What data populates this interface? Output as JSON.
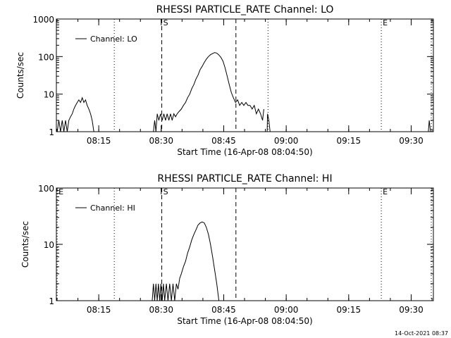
{
  "footer_timestamp": "14-Oct-2021 08:37",
  "chart_data": [
    {
      "type": "line",
      "title": "RHESSI PARTICLE_RATE Channel: LO",
      "xlabel": "Start Time (16-Apr-08 08:04:50)",
      "ylabel": "Counts/sec",
      "x_units": "minutes since 08:04:50",
      "xlim": [
        0,
        90.5
      ],
      "ylim": [
        1,
        1000
      ],
      "y_scale": "log",
      "x_ticks": [
        10.17,
        25.17,
        40.17,
        55.17,
        70.17,
        85.17
      ],
      "x_ticklabels": [
        "08:15",
        "08:30",
        "08:45",
        "09:00",
        "09:15",
        "09:30"
      ],
      "y_ticks": [
        1,
        10,
        100,
        1000
      ],
      "y_ticklabels": [
        "1",
        "10",
        "100",
        "1000"
      ],
      "legend": {
        "position": "top-left",
        "label": "Channel: LO"
      },
      "markers": [
        {
          "x": 13.9,
          "style": "dotted",
          "label": ""
        },
        {
          "x": 25.3,
          "style": "dashed",
          "label": "S"
        },
        {
          "x": 43.1,
          "style": "dashed",
          "label": ""
        },
        {
          "x": 50.8,
          "style": "dotted",
          "label": ""
        },
        {
          "x": 78.0,
          "style": "dotted",
          "label": "E"
        },
        {
          "x": 90.0,
          "style": "dotted",
          "label": ""
        }
      ],
      "series": [
        {
          "name": "Channel: LO",
          "segments": [
            [
              [
                0.2,
                1
              ],
              [
                0.6,
                2
              ],
              [
                1.0,
                1
              ],
              [
                1.4,
                2
              ],
              [
                1.8,
                1
              ],
              [
                2.2,
                2
              ],
              [
                2.6,
                1
              ],
              [
                3.0,
                2
              ],
              [
                3.4,
                2.5
              ],
              [
                3.8,
                3
              ],
              [
                4.2,
                4
              ],
              [
                4.6,
                5
              ],
              [
                5.0,
                6
              ],
              [
                5.4,
                7
              ],
              [
                5.8,
                6
              ],
              [
                6.2,
                8
              ],
              [
                6.6,
                6
              ],
              [
                7.0,
                7
              ],
              [
                7.4,
                5
              ],
              [
                7.8,
                4
              ],
              [
                8.2,
                3
              ],
              [
                8.6,
                2
              ],
              [
                9.0,
                1
              ]
            ],
            [
              [
                23.3,
                1
              ],
              [
                23.6,
                2
              ],
              [
                23.9,
                1
              ],
              [
                24.2,
                3
              ],
              [
                24.6,
                2
              ],
              [
                25.0,
                3
              ],
              [
                25.4,
                2
              ],
              [
                25.8,
                3
              ],
              [
                26.2,
                2
              ],
              [
                26.6,
                3
              ],
              [
                27.0,
                2
              ],
              [
                27.4,
                3
              ],
              [
                27.8,
                2
              ],
              [
                28.2,
                3
              ],
              [
                28.6,
                2.5
              ],
              [
                29.0,
                3
              ],
              [
                29.5,
                3.5
              ],
              [
                30.0,
                4
              ],
              [
                30.5,
                5
              ],
              [
                31.0,
                6
              ],
              [
                31.5,
                8
              ],
              [
                32.0,
                10
              ],
              [
                32.5,
                14
              ],
              [
                33.0,
                18
              ],
              [
                33.5,
                25
              ],
              [
                34.0,
                32
              ],
              [
                34.5,
                45
              ],
              [
                35.0,
                55
              ],
              [
                35.5,
                70
              ],
              [
                36.0,
                85
              ],
              [
                36.5,
                100
              ],
              [
                37.0,
                112
              ],
              [
                37.5,
                120
              ],
              [
                38.0,
                128
              ],
              [
                38.5,
                124
              ],
              [
                39.0,
                110
              ],
              [
                39.5,
                95
              ],
              [
                40.0,
                75
              ],
              [
                40.5,
                50
              ],
              [
                41.0,
                30
              ],
              [
                41.5,
                18
              ],
              [
                42.0,
                11
              ],
              [
                42.5,
                8
              ],
              [
                43.0,
                6
              ],
              [
                43.5,
                7
              ],
              [
                44.0,
                5
              ],
              [
                44.5,
                6
              ],
              [
                45.0,
                5
              ],
              [
                45.5,
                6
              ],
              [
                46.0,
                5
              ],
              [
                46.5,
                5
              ],
              [
                47.0,
                4
              ],
              [
                47.5,
                5
              ],
              [
                48.0,
                3
              ],
              [
                48.5,
                4
              ],
              [
                49.0,
                3
              ],
              [
                49.5,
                2
              ],
              [
                49.8,
                4
              ]
            ],
            [
              [
                50.6,
                1
              ],
              [
                50.7,
                3
              ],
              [
                51.0,
                2
              ],
              [
                51.3,
                1
              ]
            ],
            [
              [
                89.3,
                1
              ],
              [
                89.5,
                2
              ],
              [
                89.8,
                1
              ]
            ]
          ]
        }
      ]
    },
    {
      "type": "line",
      "title": "RHESSI PARTICLE_RATE Channel: HI",
      "xlabel": "Start Time (16-Apr-08 08:04:50)",
      "ylabel": "Counts/sec",
      "x_units": "minutes since 08:04:50",
      "xlim": [
        0,
        90.5
      ],
      "ylim": [
        1,
        100
      ],
      "y_scale": "log",
      "x_ticks": [
        10.17,
        25.17,
        40.17,
        55.17,
        70.17,
        85.17
      ],
      "x_ticklabels": [
        "08:15",
        "08:30",
        "08:45",
        "09:00",
        "09:15",
        "09:30"
      ],
      "y_ticks": [
        1,
        10,
        100
      ],
      "y_ticklabels": [
        "1",
        "10",
        "100"
      ],
      "legend": {
        "position": "top-left",
        "label": "Channel: HI"
      },
      "markers": [
        {
          "x": 0.2,
          "style": "dotted",
          "label": "E"
        },
        {
          "x": 13.9,
          "style": "dotted",
          "label": ""
        },
        {
          "x": 25.3,
          "style": "dashed",
          "label": "S"
        },
        {
          "x": 43.1,
          "style": "dashed",
          "label": ""
        },
        {
          "x": 78.0,
          "style": "dotted",
          "label": "E"
        },
        {
          "x": 90.0,
          "style": "dotted",
          "label": ""
        }
      ],
      "series": [
        {
          "name": "Channel: HI",
          "segments": [
            [
              [
                23.0,
                1
              ],
              [
                23.3,
                2
              ],
              [
                23.6,
                1
              ],
              [
                23.9,
                2
              ],
              [
                24.2,
                1
              ],
              [
                24.5,
                2
              ],
              [
                24.8,
                1
              ],
              [
                25.1,
                2
              ],
              [
                25.4,
                1
              ],
              [
                25.7,
                2
              ],
              [
                26.0,
                1
              ],
              [
                26.4,
                2
              ],
              [
                26.8,
                1
              ],
              [
                27.2,
                2
              ],
              [
                27.6,
                1
              ],
              [
                28.0,
                2
              ],
              [
                28.4,
                1
              ],
              [
                28.8,
                2
              ],
              [
                29.2,
                1.6
              ],
              [
                29.6,
                2.5
              ],
              [
                30.0,
                3
              ],
              [
                30.5,
                4
              ],
              [
                31.0,
                5
              ],
              [
                31.5,
                7
              ],
              [
                32.0,
                9
              ],
              [
                32.5,
                12
              ],
              [
                33.0,
                15
              ],
              [
                33.5,
                18
              ],
              [
                34.0,
                22
              ],
              [
                34.5,
                24
              ],
              [
                35.0,
                25
              ],
              [
                35.5,
                24
              ],
              [
                36.0,
                20
              ],
              [
                36.5,
                15
              ],
              [
                37.0,
                10
              ],
              [
                37.5,
                6
              ],
              [
                38.0,
                3.5
              ],
              [
                38.5,
                2
              ],
              [
                39.0,
                1
              ]
            ]
          ]
        }
      ]
    }
  ]
}
